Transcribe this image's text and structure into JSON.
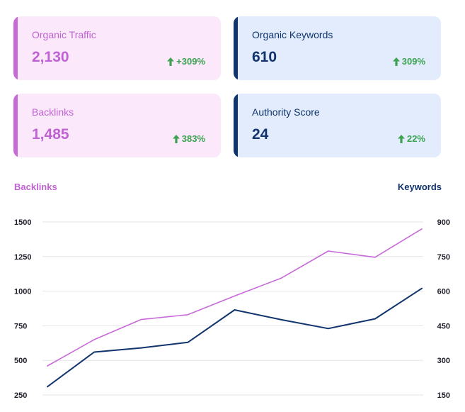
{
  "cards": [
    {
      "label": "Organic Traffic",
      "value": "2,130",
      "delta": "+309%",
      "theme": "pink"
    },
    {
      "label": "Organic Keywords",
      "value": "610",
      "delta": "309%",
      "theme": "blue"
    },
    {
      "label": "Backlinks",
      "value": "1,485",
      "delta": "383%",
      "theme": "pink"
    },
    {
      "label": "Authority Score",
      "value": "24",
      "delta": "22%",
      "theme": "blue"
    }
  ],
  "delta_icon": "arrow-up-icon",
  "colors": {
    "pink": "#c76ad8",
    "navy": "#10346b",
    "green": "#3da351",
    "grid": "#e6e6ea"
  },
  "chart_data": {
    "type": "line",
    "left_axis_title": "Backlinks",
    "right_axis_title": "Keywords",
    "y_left": {
      "ticks": [
        250,
        500,
        750,
        1000,
        1250,
        1500
      ],
      "range": [
        250,
        1500
      ]
    },
    "y_right": {
      "ticks": [
        150,
        300,
        450,
        600,
        750,
        900
      ],
      "range": [
        150,
        900
      ]
    },
    "grid": true,
    "series": [
      {
        "name": "Backlinks",
        "axis": "left",
        "color": "#c76ad8",
        "values": [
          460,
          650,
          795,
          830,
          965,
          1095,
          1290,
          1245,
          1450
        ]
      },
      {
        "name": "Keywords",
        "axis": "right",
        "color": "#10346b",
        "values": [
          186,
          336,
          354,
          378,
          519,
          476,
          438,
          480,
          612
        ]
      }
    ]
  }
}
